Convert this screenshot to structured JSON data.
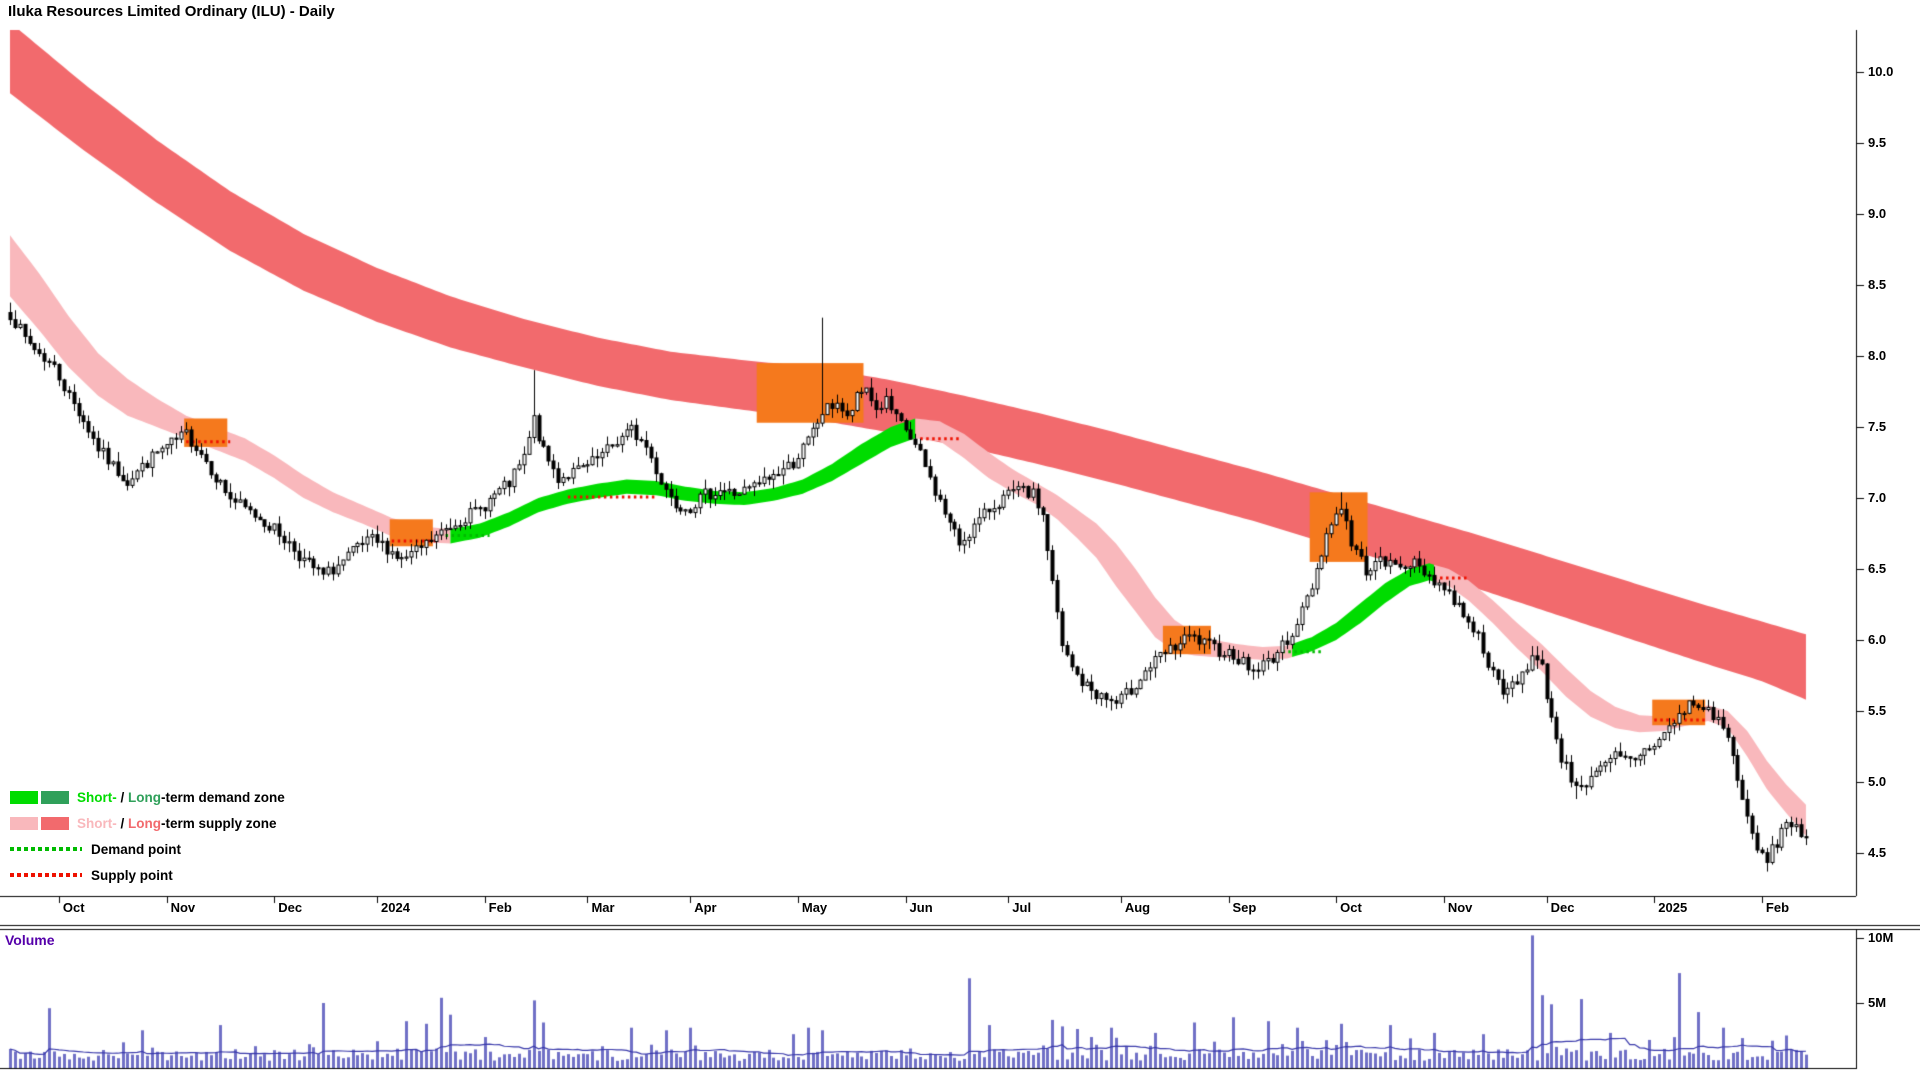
{
  "title": "Iluka Resources Limited Ordinary (ILU) - Daily",
  "volume_pane": {
    "label": "Volume",
    "ticks": [
      {
        "label": "10M",
        "value": 10
      },
      {
        "label": "5M",
        "value": 5
      }
    ]
  },
  "legend": {
    "demand": {
      "part1": "Short-",
      "sep": " / ",
      "part2": "Long",
      "part3": "-term demand zone"
    },
    "supply": {
      "part1": "Short-",
      "sep": " / ",
      "part2": "Long",
      "part3": "-term supply zone"
    },
    "demand_point": {
      "label": "Demand point"
    },
    "supply_point": {
      "label": "Supply point"
    }
  },
  "colors": {
    "supply_long": "#f26a6d",
    "supply_short": "#f9b8bc",
    "demand_short": "#00dc00",
    "demand_long": "#2fa05a",
    "zone_highlight": "#f5791d",
    "supply_point": "#ee1100",
    "demand_point": "#00bb00",
    "volume_bar": "#7070c6",
    "volume_ma": "#3838aa",
    "volume_label": "#5500aa",
    "candle": "#000000"
  },
  "chart_data": {
    "type": "candlestick",
    "title": "Iluka Resources Limited Ordinary (ILU) - Daily",
    "seed": 7,
    "total_days": 376,
    "last_day": 367,
    "x_axis": {
      "ticks": [
        {
          "label": "Oct",
          "day": 10
        },
        {
          "label": "Nov",
          "day": 32
        },
        {
          "label": "Dec",
          "day": 54
        },
        {
          "label": "2024",
          "day": 75
        },
        {
          "label": "Feb",
          "day": 97
        },
        {
          "label": "Mar",
          "day": 118
        },
        {
          "label": "Apr",
          "day": 139
        },
        {
          "label": "May",
          "day": 161
        },
        {
          "label": "Jun",
          "day": 183
        },
        {
          "label": "Jul",
          "day": 204
        },
        {
          "label": "Aug",
          "day": 227
        },
        {
          "label": "Sep",
          "day": 249
        },
        {
          "label": "Oct",
          "day": 271
        },
        {
          "label": "Nov",
          "day": 293
        },
        {
          "label": "Dec",
          "day": 314
        },
        {
          "label": "2025",
          "day": 336
        },
        {
          "label": "Feb",
          "day": 358
        }
      ]
    },
    "y_axis": {
      "tick_labels": [
        "10.0",
        "9.5",
        "9.0",
        "8.5",
        "8.0",
        "7.5",
        "7.0",
        "6.5",
        "6.0",
        "5.5",
        "5.0",
        "4.5"
      ],
      "range": [
        4.2,
        10.3
      ]
    },
    "price_waypoints": [
      [
        0,
        8.3
      ],
      [
        3,
        8.12
      ],
      [
        6,
        8.02
      ],
      [
        9,
        7.92
      ],
      [
        12,
        7.72
      ],
      [
        15,
        7.55
      ],
      [
        18,
        7.35
      ],
      [
        21,
        7.22
      ],
      [
        24,
        7.12
      ],
      [
        27,
        7.22
      ],
      [
        30,
        7.32
      ],
      [
        33,
        7.38
      ],
      [
        36,
        7.45
      ],
      [
        39,
        7.32
      ],
      [
        42,
        7.15
      ],
      [
        45,
        7.0
      ],
      [
        48,
        6.92
      ],
      [
        51,
        6.86
      ],
      [
        54,
        6.78
      ],
      [
        57,
        6.68
      ],
      [
        60,
        6.56
      ],
      [
        64,
        6.45
      ],
      [
        68,
        6.55
      ],
      [
        71,
        6.65
      ],
      [
        74,
        6.7
      ],
      [
        77,
        6.65
      ],
      [
        80,
        6.56
      ],
      [
        83,
        6.62
      ],
      [
        86,
        6.7
      ],
      [
        89,
        6.78
      ],
      [
        92,
        6.85
      ],
      [
        96,
        6.92
      ],
      [
        99,
        7.02
      ],
      [
        102,
        7.1
      ],
      [
        105,
        7.28
      ],
      [
        107,
        7.55
      ],
      [
        109,
        7.32
      ],
      [
        112,
        7.14
      ],
      [
        115,
        7.18
      ],
      [
        118,
        7.22
      ],
      [
        121,
        7.3
      ],
      [
        124,
        7.4
      ],
      [
        127,
        7.48
      ],
      [
        130,
        7.36
      ],
      [
        133,
        7.12
      ],
      [
        136,
        6.96
      ],
      [
        139,
        6.94
      ],
      [
        142,
        7.02
      ],
      [
        145,
        7.06
      ],
      [
        148,
        7.03
      ],
      [
        151,
        7.06
      ],
      [
        154,
        7.12
      ],
      [
        157,
        7.18
      ],
      [
        160,
        7.25
      ],
      [
        163,
        7.4
      ],
      [
        166,
        7.6
      ],
      [
        169,
        7.68
      ],
      [
        171,
        7.55
      ],
      [
        173,
        7.7
      ],
      [
        175,
        7.78
      ],
      [
        177,
        7.62
      ],
      [
        179,
        7.68
      ],
      [
        181,
        7.55
      ],
      [
        183,
        7.48
      ],
      [
        186,
        7.3
      ],
      [
        189,
        7.05
      ],
      [
        192,
        6.82
      ],
      [
        194,
        6.68
      ],
      [
        197,
        6.8
      ],
      [
        200,
        6.92
      ],
      [
        203,
        7.0
      ],
      [
        206,
        7.05
      ],
      [
        209,
        7.02
      ],
      [
        211,
        6.88
      ],
      [
        213,
        6.4
      ],
      [
        215,
        5.95
      ],
      [
        217,
        5.8
      ],
      [
        219,
        5.7
      ],
      [
        222,
        5.62
      ],
      [
        226,
        5.55
      ],
      [
        229,
        5.65
      ],
      [
        232,
        5.78
      ],
      [
        235,
        5.88
      ],
      [
        238,
        5.95
      ],
      [
        241,
        6.02
      ],
      [
        244,
        5.97
      ],
      [
        247,
        5.93
      ],
      [
        250,
        5.9
      ],
      [
        254,
        5.78
      ],
      [
        257,
        5.85
      ],
      [
        260,
        5.95
      ],
      [
        263,
        6.12
      ],
      [
        266,
        6.38
      ],
      [
        269,
        6.75
      ],
      [
        272,
        6.95
      ],
      [
        274,
        6.68
      ],
      [
        277,
        6.5
      ],
      [
        280,
        6.55
      ],
      [
        283,
        6.52
      ],
      [
        286,
        6.55
      ],
      [
        289,
        6.48
      ],
      [
        292,
        6.4
      ],
      [
        295,
        6.28
      ],
      [
        298,
        6.15
      ],
      [
        301,
        5.95
      ],
      [
        303,
        5.75
      ],
      [
        305,
        5.62
      ],
      [
        308,
        5.72
      ],
      [
        311,
        5.88
      ],
      [
        313,
        5.8
      ],
      [
        315,
        5.45
      ],
      [
        317,
        5.18
      ],
      [
        319,
        5.02
      ],
      [
        322,
        4.98
      ],
      [
        325,
        5.08
      ],
      [
        328,
        5.18
      ],
      [
        331,
        5.15
      ],
      [
        334,
        5.22
      ],
      [
        337,
        5.3
      ],
      [
        340,
        5.42
      ],
      [
        343,
        5.55
      ],
      [
        346,
        5.52
      ],
      [
        349,
        5.45
      ],
      [
        351,
        5.3
      ],
      [
        353,
        5.05
      ],
      [
        355,
        4.72
      ],
      [
        357,
        4.52
      ],
      [
        359,
        4.45
      ],
      [
        361,
        4.58
      ],
      [
        363,
        4.72
      ],
      [
        365,
        4.7
      ],
      [
        367,
        4.58
      ]
    ],
    "high_overrides": [
      [
        107,
        7.9
      ],
      [
        166,
        8.27
      ],
      [
        272,
        7.04
      ]
    ],
    "low_overrides": [
      [
        320,
        4.88
      ],
      [
        359,
        4.4
      ]
    ],
    "long_supply_band": [
      [
        0,
        10.35,
        9.85
      ],
      [
        15,
        9.92,
        9.45
      ],
      [
        30,
        9.52,
        9.08
      ],
      [
        45,
        9.16,
        8.74
      ],
      [
        60,
        8.86,
        8.46
      ],
      [
        75,
        8.62,
        8.24
      ],
      [
        90,
        8.42,
        8.06
      ],
      [
        105,
        8.26,
        7.92
      ],
      [
        120,
        8.13,
        7.79
      ],
      [
        135,
        8.03,
        7.69
      ],
      [
        150,
        7.97,
        7.62
      ],
      [
        165,
        7.92,
        7.55
      ],
      [
        180,
        7.83,
        7.46
      ],
      [
        195,
        7.72,
        7.36
      ],
      [
        210,
        7.6,
        7.24
      ],
      [
        225,
        7.47,
        7.11
      ],
      [
        240,
        7.33,
        6.97
      ],
      [
        255,
        7.19,
        6.83
      ],
      [
        270,
        7.04,
        6.67
      ],
      [
        285,
        6.89,
        6.52
      ],
      [
        300,
        6.74,
        6.36
      ],
      [
        315,
        6.58,
        6.19
      ],
      [
        330,
        6.42,
        6.02
      ],
      [
        345,
        6.26,
        5.85
      ],
      [
        358,
        6.13,
        5.71
      ],
      [
        367,
        6.04,
        5.58
      ]
    ],
    "short_band": {
      "points": [
        [
          0,
          8.85,
          8.42
        ],
        [
          6,
          8.58,
          8.18
        ],
        [
          12,
          8.28,
          7.92
        ],
        [
          18,
          8.02,
          7.72
        ],
        [
          24,
          7.84,
          7.58
        ],
        [
          30,
          7.7,
          7.5
        ],
        [
          36,
          7.58,
          7.42
        ],
        [
          42,
          7.5,
          7.34
        ],
        [
          48,
          7.42,
          7.26
        ],
        [
          54,
          7.3,
          7.14
        ],
        [
          60,
          7.16,
          7.0
        ],
        [
          66,
          7.04,
          6.9
        ],
        [
          72,
          6.95,
          6.82
        ],
        [
          78,
          6.86,
          6.73
        ],
        [
          84,
          6.8,
          6.69
        ],
        [
          90,
          6.78,
          6.68
        ],
        [
          96,
          6.82,
          6.72
        ],
        [
          102,
          6.9,
          6.8
        ],
        [
          108,
          7.0,
          6.9
        ],
        [
          114,
          7.06,
          6.96
        ],
        [
          120,
          7.1,
          7.0
        ],
        [
          126,
          7.13,
          7.03
        ],
        [
          132,
          7.12,
          7.02
        ],
        [
          138,
          7.08,
          6.98
        ],
        [
          144,
          7.05,
          6.96
        ],
        [
          150,
          7.04,
          6.95
        ],
        [
          156,
          7.07,
          6.98
        ],
        [
          162,
          7.13,
          7.03
        ],
        [
          168,
          7.24,
          7.12
        ],
        [
          174,
          7.38,
          7.24
        ],
        [
          180,
          7.5,
          7.36
        ],
        [
          185,
          7.56,
          7.42
        ],
        [
          190,
          7.54,
          7.4
        ],
        [
          195,
          7.45,
          7.28
        ],
        [
          200,
          7.32,
          7.14
        ],
        [
          205,
          7.2,
          7.04
        ],
        [
          210,
          7.1,
          6.95
        ],
        [
          214,
          7.02,
          6.85
        ],
        [
          218,
          6.92,
          6.72
        ],
        [
          222,
          6.82,
          6.58
        ],
        [
          226,
          6.68,
          6.38
        ],
        [
          230,
          6.5,
          6.2
        ],
        [
          234,
          6.3,
          6.02
        ],
        [
          238,
          6.14,
          5.92
        ],
        [
          242,
          6.05,
          5.89
        ],
        [
          246,
          6.0,
          5.88
        ],
        [
          251,
          5.97,
          5.87
        ],
        [
          256,
          5.95,
          5.86
        ],
        [
          261,
          5.96,
          5.87
        ],
        [
          266,
          6.02,
          5.92
        ],
        [
          271,
          6.12,
          6.0
        ],
        [
          276,
          6.26,
          6.12
        ],
        [
          281,
          6.4,
          6.26
        ],
        [
          286,
          6.5,
          6.38
        ],
        [
          290,
          6.54,
          6.42
        ],
        [
          294,
          6.5,
          6.38
        ],
        [
          298,
          6.42,
          6.28
        ],
        [
          303,
          6.28,
          6.12
        ],
        [
          308,
          6.12,
          5.94
        ],
        [
          313,
          5.97,
          5.78
        ],
        [
          318,
          5.8,
          5.6
        ],
        [
          323,
          5.64,
          5.46
        ],
        [
          328,
          5.53,
          5.38
        ],
        [
          333,
          5.47,
          5.35
        ],
        [
          338,
          5.46,
          5.36
        ],
        [
          343,
          5.5,
          5.4
        ],
        [
          347,
          5.54,
          5.43
        ],
        [
          351,
          5.5,
          5.38
        ],
        [
          355,
          5.36,
          5.18
        ],
        [
          359,
          5.15,
          4.95
        ],
        [
          363,
          4.98,
          4.78
        ],
        [
          367,
          4.84,
          4.62
        ]
      ],
      "segments": [
        {
          "from": 0,
          "to": 90,
          "type": "supply"
        },
        {
          "from": 90,
          "to": 185,
          "type": "demand"
        },
        {
          "from": 185,
          "to": 262,
          "type": "supply"
        },
        {
          "from": 262,
          "to": 291,
          "type": "demand"
        },
        {
          "from": 291,
          "to": 367,
          "type": "supply"
        }
      ]
    },
    "orange_zones": [
      [
        36,
        44,
        7.56,
        7.36
      ],
      [
        78,
        86,
        6.85,
        6.66
      ],
      [
        153,
        174,
        7.95,
        7.53
      ],
      [
        236,
        245,
        6.1,
        5.9
      ],
      [
        266,
        277,
        7.04,
        6.55
      ],
      [
        336,
        346,
        5.58,
        5.4
      ]
    ],
    "supply_points": [
      [
        36,
        45,
        7.4
      ],
      [
        78,
        87,
        6.7
      ],
      [
        114,
        132,
        7.01
      ],
      [
        186,
        194,
        7.42
      ],
      [
        291,
        298,
        6.44
      ],
      [
        336,
        347,
        5.44
      ]
    ],
    "demand_points": [
      [
        89,
        98,
        6.74
      ],
      [
        260,
        268,
        5.92
      ]
    ],
    "volume": {
      "unit": "M",
      "ylim_m": [
        0,
        10
      ],
      "ma_window": 20,
      "spikes": [
        [
          8,
          4.6
        ],
        [
          27,
          2.9
        ],
        [
          43,
          3.3
        ],
        [
          64,
          5.0
        ],
        [
          81,
          3.6
        ],
        [
          85,
          3.4
        ],
        [
          88,
          5.4
        ],
        [
          90,
          4.1
        ],
        [
          107,
          5.2
        ],
        [
          109,
          3.5
        ],
        [
          127,
          3.1
        ],
        [
          134,
          2.9
        ],
        [
          139,
          3.1
        ],
        [
          160,
          2.6
        ],
        [
          163,
          3.1
        ],
        [
          166,
          2.9
        ],
        [
          196,
          6.9
        ],
        [
          200,
          3.3
        ],
        [
          213,
          3.7
        ],
        [
          215,
          3.2
        ],
        [
          218,
          3.0
        ],
        [
          225,
          3.1
        ],
        [
          234,
          2.7
        ],
        [
          242,
          3.5
        ],
        [
          250,
          3.9
        ],
        [
          257,
          3.6
        ],
        [
          263,
          3.1
        ],
        [
          272,
          3.4
        ],
        [
          282,
          3.3
        ],
        [
          291,
          2.7
        ],
        [
          301,
          2.6
        ],
        [
          311,
          10.2
        ],
        [
          313,
          5.6
        ],
        [
          315,
          4.9
        ],
        [
          321,
          5.3
        ],
        [
          327,
          2.7
        ],
        [
          341,
          7.3
        ],
        [
          345,
          4.3
        ],
        [
          350,
          3.1
        ],
        [
          354,
          2.3
        ],
        [
          360,
          2.1
        ],
        [
          363,
          2.5
        ]
      ]
    }
  }
}
